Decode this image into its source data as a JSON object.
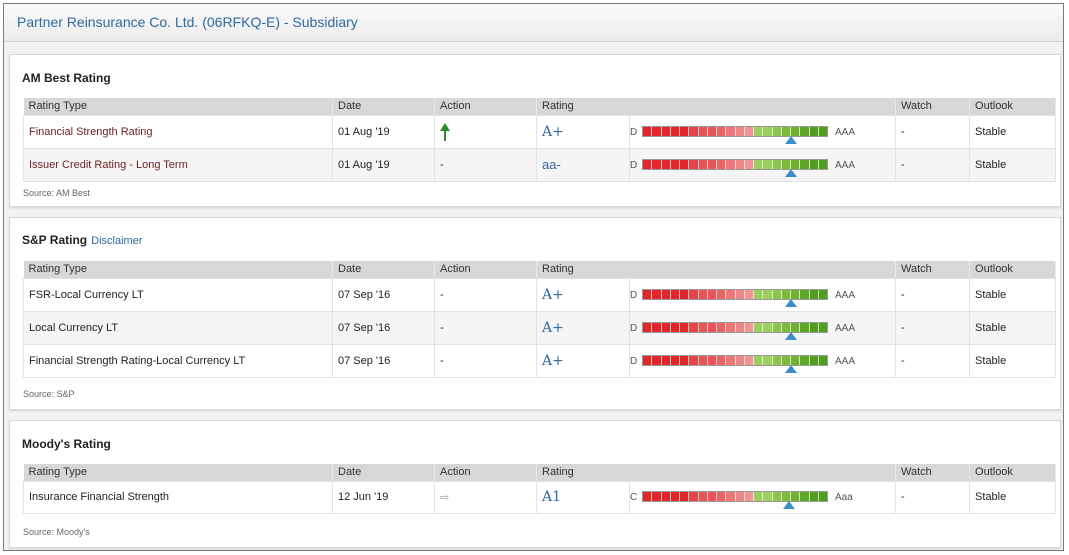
{
  "header": {
    "title": "Partner Reinsurance Co. Ltd. (06RFKQ-E) - Subsidiary"
  },
  "columns": {
    "type": "Rating Type",
    "date": "Date",
    "action": "Action",
    "rating": "Rating",
    "watch": "Watch",
    "outlook": "Outlook"
  },
  "ambest": {
    "title": "AM Best Rating",
    "source": "Source: AM Best",
    "rows": [
      {
        "type": "Financial Strength Rating",
        "date": "01 Aug '19",
        "action": "up",
        "rating": "A+",
        "scale_low": "D",
        "scale_high": "AAA",
        "position_pct": 0.8,
        "watch": "-",
        "outlook": "Stable"
      },
      {
        "type": "Issuer Credit Rating - Long Term",
        "date": "01 Aug '19",
        "action": "-",
        "rating": "aa-",
        "scale_low": "D",
        "scale_high": "AAA",
        "position_pct": 0.8,
        "watch": "-",
        "outlook": "Stable"
      }
    ]
  },
  "sp": {
    "title": "S&P Rating",
    "disclaimer": "Disclaimer",
    "source": "Source: S&P",
    "rows": [
      {
        "type": "FSR-Local Currency LT",
        "date": "07 Sep '16",
        "action": "-",
        "rating": "A+",
        "scale_low": "D",
        "scale_high": "AAA",
        "position_pct": 0.8,
        "watch": "-",
        "outlook": "Stable"
      },
      {
        "type": "Local Currency LT",
        "date": "07 Sep '16",
        "action": "-",
        "rating": "A+",
        "scale_low": "D",
        "scale_high": "AAA",
        "position_pct": 0.8,
        "watch": "-",
        "outlook": "Stable"
      },
      {
        "type": "Financial Strength Rating-Local Currency LT",
        "date": "07 Sep '16",
        "action": "-",
        "rating": "A+",
        "scale_low": "D",
        "scale_high": "AAA",
        "position_pct": 0.8,
        "watch": "-",
        "outlook": "Stable"
      }
    ]
  },
  "moodys": {
    "title": "Moody's Rating",
    "source": "Source: Moody's",
    "rows": [
      {
        "type": "Insurance Financial Strength",
        "date": "12 Jun '19",
        "action": "right",
        "rating": "A1",
        "scale_low": "C",
        "scale_high": "Aaa",
        "position_pct": 0.79,
        "watch": "-",
        "outlook": "Stable"
      }
    ]
  },
  "scale_colors": [
    "#e0262b",
    "#e0262b",
    "#e0262b",
    "#e0262b",
    "#e0262b",
    "#e64447",
    "#e85456",
    "#e85456",
    "#ea6466",
    "#ec7678",
    "#ee8587",
    "#f19497",
    "#9ccf5e",
    "#9ccf5e",
    "#8cc54c",
    "#7dbb3c",
    "#6fb22f",
    "#5fa826",
    "#4f9e1f",
    "#4f9e1f"
  ]
}
